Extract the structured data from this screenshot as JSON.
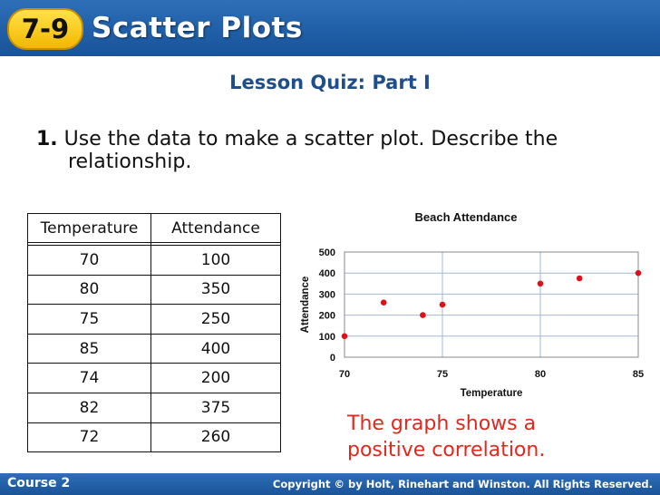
{
  "header": {
    "badge": "7-9",
    "title": "Scatter Plots"
  },
  "subtitle": "Lesson Quiz: Part I",
  "question": {
    "number": "1.",
    "line1": "Use the data to make a scatter plot. Describe the",
    "line2": "relationship."
  },
  "table": {
    "headers": [
      "Temperature",
      "Attendance"
    ],
    "rows": [
      [
        "70",
        "100"
      ],
      [
        "80",
        "350"
      ],
      [
        "75",
        "250"
      ],
      [
        "85",
        "400"
      ],
      [
        "74",
        "200"
      ],
      [
        "82",
        "375"
      ],
      [
        "72",
        "260"
      ]
    ]
  },
  "chart_data": {
    "type": "scatter",
    "title": "Beach Attendance",
    "xlabel": "Temperature",
    "ylabel": "Attendance",
    "xlim": [
      70,
      85
    ],
    "ylim": [
      0,
      500
    ],
    "xticks": [
      70,
      75,
      80,
      85
    ],
    "yticks": [
      0,
      100,
      200,
      300,
      400,
      500
    ],
    "grid": true,
    "marker_color": "#e0101a",
    "series": [
      {
        "name": "Attendance",
        "points": [
          [
            70,
            100
          ],
          [
            72,
            260
          ],
          [
            74,
            200
          ],
          [
            75,
            250
          ],
          [
            80,
            350
          ],
          [
            82,
            375
          ],
          [
            85,
            400
          ]
        ]
      }
    ]
  },
  "answer": {
    "line1": "The graph shows a",
    "line2": "positive correlation."
  },
  "footer": {
    "left": "Course 2",
    "right": "Copyright © by Holt, Rinehart and Winston. All Rights Reserved."
  }
}
